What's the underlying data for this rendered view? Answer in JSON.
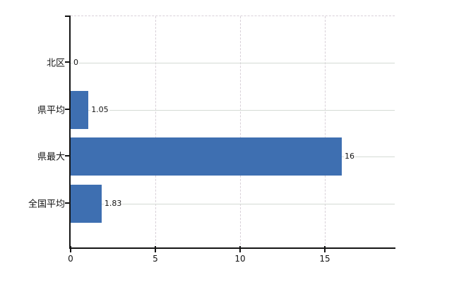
{
  "chart_data": {
    "type": "bar",
    "orientation": "horizontal",
    "title": "",
    "xlabel": "",
    "ylabel": "",
    "categories": [
      "北区",
      "県平均",
      "県最大",
      "全国平均"
    ],
    "values": [
      0,
      1.05,
      16,
      1.83
    ],
    "data_labels": [
      "0",
      "1.05",
      "16",
      "1.83"
    ],
    "x_ticks": [
      0,
      5,
      10,
      15
    ],
    "x_tick_labels": [
      "0",
      "5",
      "10",
      "15"
    ],
    "xlim": [
      0,
      19.1
    ],
    "grid": "horizontal solid light lines at each category center; vertical dashed light lines at 5, 10, 15; dashed top plot border",
    "legend": "none",
    "colors": {
      "bar": "#3e6fb1",
      "horizontal_gridline": "#d5dbd5",
      "vertical_gridline": "#d8d0d8",
      "axis": "#141414",
      "text": "#141414",
      "background": "#ffffff"
    }
  }
}
